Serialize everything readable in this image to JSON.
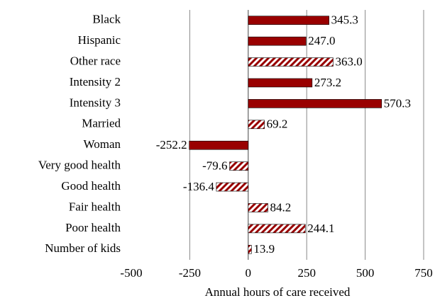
{
  "chart_data": {
    "type": "hbar",
    "xlabel": "Annual hours of care received",
    "categories": [
      "Black",
      "Hispanic",
      "Other race",
      "Intensity 2",
      "Intensity 3",
      "Married",
      "Woman",
      "Very good health",
      "Good health",
      "Fair health",
      "Poor health",
      "Number of kids"
    ],
    "values": [
      345.3,
      247.0,
      363.0,
      273.2,
      570.3,
      69.2,
      -252.2,
      -79.6,
      -136.4,
      84.2,
      244.1,
      13.9
    ],
    "value_labels": [
      "345.3",
      "247.0",
      "363.0",
      "273.2",
      "570.3",
      "69.2",
      "-252.2",
      "-79.6",
      "-136.4",
      "84.2",
      "244.1",
      "13.9"
    ],
    "hatched": [
      false,
      false,
      true,
      false,
      false,
      true,
      false,
      true,
      true,
      true,
      true,
      true
    ],
    "color": "#990000",
    "xlim": [
      -500,
      750
    ],
    "xticks": [
      -500,
      -250,
      0,
      250,
      500,
      750
    ],
    "grid": true
  }
}
